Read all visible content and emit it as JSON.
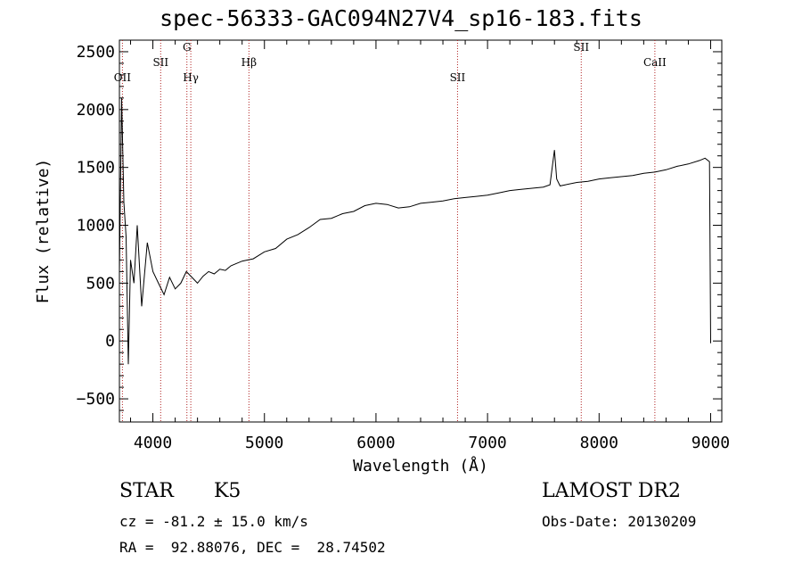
{
  "chart_data": {
    "type": "line",
    "title": "spec-56333-GAC094N27V4_sp16-183.fits",
    "xlabel": "Wavelength (Å)",
    "ylabel": "Flux (relative)",
    "xlim": [
      3700,
      9100
    ],
    "ylim": [
      -700,
      2600
    ],
    "xticks": [
      4000,
      5000,
      6000,
      7000,
      8000,
      9000
    ],
    "yticks": [
      -500,
      0,
      500,
      1000,
      1500,
      2000,
      2500
    ],
    "series": [
      {
        "x": [
          3700,
          3720,
          3740,
          3760,
          3780,
          3800,
          3830,
          3860,
          3900,
          3950,
          4000,
          4050,
          4100,
          4150,
          4200,
          4250,
          4300,
          4350,
          4400,
          4450,
          4500,
          4550,
          4600,
          4650,
          4700,
          4750,
          4800,
          4850,
          4900,
          4950,
          5000,
          5100,
          5200,
          5300,
          5400,
          5500,
          5600,
          5700,
          5800,
          5900,
          6000,
          6100,
          6200,
          6300,
          6400,
          6500,
          6600,
          6700,
          6800,
          6900,
          7000,
          7100,
          7200,
          7300,
          7400,
          7500,
          7560,
          7600,
          7620,
          7650,
          7700,
          7800,
          7900,
          8000,
          8100,
          8200,
          8300,
          8400,
          8500,
          8600,
          8700,
          8800,
          8900,
          8950,
          8990,
          9000
        ],
        "y": [
          600,
          2100,
          1200,
          900,
          -200,
          700,
          500,
          1000,
          300,
          850,
          600,
          500,
          400,
          550,
          450,
          500,
          600,
          550,
          500,
          560,
          600,
          580,
          620,
          610,
          650,
          670,
          690,
          700,
          710,
          740,
          770,
          800,
          880,
          920,
          980,
          1050,
          1060,
          1100,
          1120,
          1170,
          1190,
          1180,
          1150,
          1160,
          1190,
          1200,
          1210,
          1230,
          1240,
          1250,
          1260,
          1280,
          1300,
          1310,
          1320,
          1330,
          1350,
          1650,
          1400,
          1340,
          1350,
          1370,
          1380,
          1400,
          1410,
          1420,
          1430,
          1450,
          1460,
          1480,
          1510,
          1530,
          1560,
          1580,
          1550,
          -20
        ]
      }
    ],
    "line_markers": [
      {
        "label": "OII",
        "x": 3727
      },
      {
        "label": "SII",
        "x": 4070
      },
      {
        "label": "G",
        "x": 4305
      },
      {
        "label": "Hγ",
        "x": 4340
      },
      {
        "label": "Hβ",
        "x": 4861
      },
      {
        "label": "SII",
        "x": 6731
      },
      {
        "label": "SII",
        "x": 7840
      },
      {
        "label": "CaII",
        "x": 8500
      }
    ],
    "grid": false
  },
  "footer": {
    "object_class": "STAR",
    "subclass": "K5",
    "survey": "LAMOST DR2",
    "cz": "cz = -81.2 ± 15.0 km/s",
    "obs_date": "Obs-Date: 20130209",
    "radec": "RA =  92.88076, DEC =  28.74502"
  }
}
